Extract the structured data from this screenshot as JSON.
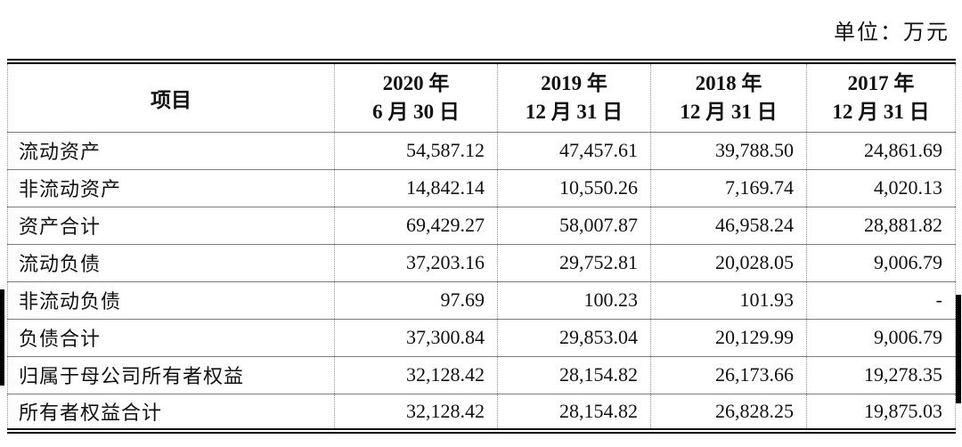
{
  "unit_label": "单位：万元",
  "table": {
    "header": {
      "item_label": "项目",
      "periods": [
        {
          "line1": "2020 年",
          "line2": "6 月 30 日"
        },
        {
          "line1": "2019 年",
          "line2": "12 月 31 日"
        },
        {
          "line1": "2018 年",
          "line2": "12 月 31 日"
        },
        {
          "line1": "2017 年",
          "line2": "12 月 31 日"
        }
      ]
    },
    "rows": [
      {
        "label": "流动资产",
        "values": [
          "54,587.12",
          "47,457.61",
          "39,788.50",
          "24,861.69"
        ]
      },
      {
        "label": "非流动资产",
        "values": [
          "14,842.14",
          "10,550.26",
          "7,169.74",
          "4,020.13"
        ]
      },
      {
        "label": "资产合计",
        "values": [
          "69,429.27",
          "58,007.87",
          "46,958.24",
          "28,881.82"
        ]
      },
      {
        "label": "流动负债",
        "values": [
          "37,203.16",
          "29,752.81",
          "20,028.05",
          "9,006.79"
        ]
      },
      {
        "label": "非流动负债",
        "values": [
          "97.69",
          "100.23",
          "101.93",
          "-"
        ]
      },
      {
        "label": "负债合计",
        "values": [
          "37,300.84",
          "29,853.04",
          "20,129.99",
          "9,006.79"
        ]
      },
      {
        "label": "归属于母公司所有者权益",
        "values": [
          "32,128.42",
          "28,154.82",
          "26,173.66",
          "19,278.35"
        ]
      },
      {
        "label": "所有者权益合计",
        "values": [
          "32,128.42",
          "28,154.82",
          "26,828.25",
          "19,875.03"
        ]
      }
    ]
  }
}
